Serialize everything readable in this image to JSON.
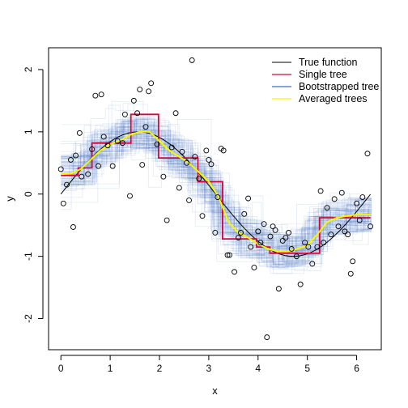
{
  "chart_data": {
    "type": "scatter",
    "title": "",
    "xlabel": "x",
    "ylabel": "y",
    "xlim": [
      -0.25,
      6.5
    ],
    "ylim": [
      -2.5,
      2.35
    ],
    "xticks": [
      0,
      1,
      2,
      3,
      4,
      5,
      6
    ],
    "yticks": [
      -2,
      -1,
      0,
      1,
      2
    ],
    "grid": false,
    "legend_position": "top-right",
    "legend": [
      {
        "label": "True function",
        "color": "#000000",
        "width": 1
      },
      {
        "label": "Single tree",
        "color": "#cd0a3f",
        "width": 1.2
      },
      {
        "label": "Bootstrapped tree",
        "color": "#3a6fc0",
        "width": 1.2
      },
      {
        "label": "Averaged trees",
        "color": "#f7f700",
        "width": 1.2
      }
    ],
    "points": [
      [
        0.0,
        0.4
      ],
      [
        0.05,
        -0.15
      ],
      [
        0.12,
        0.15
      ],
      [
        0.2,
        0.55
      ],
      [
        0.25,
        -0.53
      ],
      [
        0.3,
        0.62
      ],
      [
        0.38,
        0.98
      ],
      [
        0.42,
        0.28
      ],
      [
        0.55,
        0.32
      ],
      [
        0.63,
        0.72
      ],
      [
        0.7,
        1.58
      ],
      [
        0.76,
        0.45
      ],
      [
        0.82,
        1.6
      ],
      [
        0.87,
        0.92
      ],
      [
        0.95,
        0.78
      ],
      [
        1.05,
        0.45
      ],
      [
        1.15,
        0.85
      ],
      [
        1.25,
        0.82
      ],
      [
        1.3,
        1.28
      ],
      [
        1.4,
        -0.03
      ],
      [
        1.48,
        1.5
      ],
      [
        1.55,
        1.3
      ],
      [
        1.6,
        1.68
      ],
      [
        1.65,
        0.47
      ],
      [
        1.72,
        1.08
      ],
      [
        1.78,
        1.65
      ],
      [
        1.83,
        1.78
      ],
      [
        1.95,
        0.8
      ],
      [
        2.08,
        0.28
      ],
      [
        2.15,
        -0.42
      ],
      [
        2.25,
        0.75
      ],
      [
        2.33,
        1.3
      ],
      [
        2.4,
        0.1
      ],
      [
        2.46,
        0.68
      ],
      [
        2.55,
        0.5
      ],
      [
        2.6,
        -0.1
      ],
      [
        2.66,
        2.15
      ],
      [
        2.72,
        0.6
      ],
      [
        2.8,
        0.25
      ],
      [
        2.87,
        -0.35
      ],
      [
        2.95,
        0.7
      ],
      [
        3.0,
        0.55
      ],
      [
        3.05,
        0.48
      ],
      [
        3.13,
        -0.62
      ],
      [
        3.18,
        -0.05
      ],
      [
        3.25,
        0.73
      ],
      [
        3.3,
        0.7
      ],
      [
        3.38,
        -0.98
      ],
      [
        3.42,
        -0.98
      ],
      [
        3.52,
        -1.25
      ],
      [
        3.6,
        -0.7
      ],
      [
        3.65,
        -0.62
      ],
      [
        3.72,
        -0.32
      ],
      [
        3.8,
        -0.07
      ],
      [
        3.85,
        -0.85
      ],
      [
        3.92,
        -1.18
      ],
      [
        4.0,
        -0.6
      ],
      [
        4.05,
        -0.78
      ],
      [
        4.12,
        -0.48
      ],
      [
        4.18,
        -2.3
      ],
      [
        4.25,
        -0.68
      ],
      [
        4.3,
        -0.52
      ],
      [
        4.35,
        -0.58
      ],
      [
        4.42,
        -1.52
      ],
      [
        4.5,
        -0.75
      ],
      [
        4.56,
        -0.7
      ],
      [
        4.62,
        -0.62
      ],
      [
        4.68,
        -0.88
      ],
      [
        4.78,
        -1.0
      ],
      [
        4.86,
        -1.45
      ],
      [
        4.95,
        -0.78
      ],
      [
        5.02,
        -0.85
      ],
      [
        5.1,
        -1.12
      ],
      [
        5.2,
        -0.85
      ],
      [
        5.27,
        0.05
      ],
      [
        5.33,
        -0.78
      ],
      [
        5.4,
        -0.22
      ],
      [
        5.48,
        -0.65
      ],
      [
        5.55,
        -0.08
      ],
      [
        5.63,
        -0.52
      ],
      [
        5.7,
        0.02
      ],
      [
        5.76,
        -0.6
      ],
      [
        5.82,
        -0.65
      ],
      [
        5.88,
        -1.28
      ],
      [
        5.92,
        -1.08
      ],
      [
        6.0,
        -0.15
      ],
      [
        6.06,
        -0.42
      ],
      [
        6.12,
        -0.05
      ],
      [
        6.22,
        0.65
      ],
      [
        6.28,
        -0.52
      ]
    ],
    "single_tree": [
      [
        0.0,
        0.3
      ],
      [
        0.35,
        0.3
      ],
      [
        0.35,
        0.42
      ],
      [
        0.63,
        0.42
      ],
      [
        0.63,
        0.82
      ],
      [
        1.42,
        0.82
      ],
      [
        1.42,
        1.28
      ],
      [
        1.98,
        1.28
      ],
      [
        1.98,
        0.58
      ],
      [
        2.78,
        0.58
      ],
      [
        2.78,
        0.2
      ],
      [
        3.28,
        0.2
      ],
      [
        3.28,
        -0.72
      ],
      [
        3.97,
        -0.72
      ],
      [
        3.97,
        -0.85
      ],
      [
        4.24,
        -0.85
      ],
      [
        4.24,
        -0.95
      ],
      [
        5.25,
        -0.95
      ],
      [
        5.25,
        -0.38
      ],
      [
        6.28,
        -0.38
      ]
    ],
    "averaged_trees": [
      [
        0.0,
        0.32
      ],
      [
        0.2,
        0.33
      ],
      [
        0.4,
        0.4
      ],
      [
        0.6,
        0.55
      ],
      [
        0.8,
        0.7
      ],
      [
        1.0,
        0.8
      ],
      [
        1.2,
        0.86
      ],
      [
        1.4,
        0.95
      ],
      [
        1.6,
        1.0
      ],
      [
        1.8,
        1.0
      ],
      [
        2.0,
        0.85
      ],
      [
        2.2,
        0.7
      ],
      [
        2.4,
        0.6
      ],
      [
        2.6,
        0.5
      ],
      [
        2.8,
        0.35
      ],
      [
        3.0,
        0.2
      ],
      [
        3.2,
        -0.05
      ],
      [
        3.4,
        -0.45
      ],
      [
        3.6,
        -0.62
      ],
      [
        3.8,
        -0.7
      ],
      [
        4.0,
        -0.8
      ],
      [
        4.2,
        -0.88
      ],
      [
        4.4,
        -0.92
      ],
      [
        4.6,
        -0.92
      ],
      [
        4.8,
        -0.88
      ],
      [
        5.0,
        -0.82
      ],
      [
        5.2,
        -0.65
      ],
      [
        5.4,
        -0.45
      ],
      [
        5.6,
        -0.38
      ],
      [
        5.8,
        -0.35
      ],
      [
        6.0,
        -0.33
      ],
      [
        6.28,
        -0.33
      ]
    ],
    "true_function": "y = sin(x)",
    "bootstrap_trees_count": 100
  }
}
